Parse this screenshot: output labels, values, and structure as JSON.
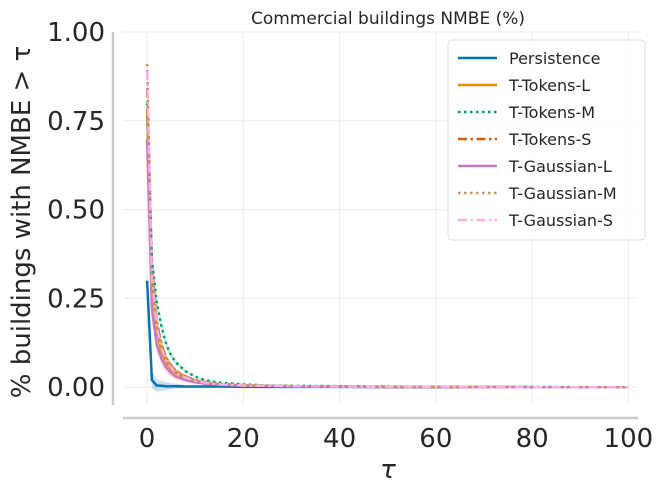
{
  "chart_data": {
    "type": "line",
    "title": "Commercial buildings NMBE (%)",
    "xlabel": "τ",
    "ylabel": "% buildings with NMBE  > τ",
    "xlim": [
      -5,
      102
    ],
    "ylim": [
      -0.05,
      1.0
    ],
    "xticks": [
      0,
      20,
      40,
      60,
      80,
      100
    ],
    "yticks": [
      0.0,
      0.25,
      0.5,
      0.75,
      1.0
    ],
    "xtick_labels": [
      "0",
      "20",
      "40",
      "60",
      "80",
      "100"
    ],
    "ytick_labels": [
      "0.00",
      "0.25",
      "0.50",
      "0.75",
      "1.00"
    ],
    "grid": true,
    "legend_position": "top-right",
    "x": [
      0,
      1,
      2,
      3,
      4,
      5,
      6,
      8,
      10,
      12,
      15,
      20,
      25,
      30,
      40,
      50,
      60,
      70,
      80,
      90,
      100
    ],
    "series": [
      {
        "name": "Persistence",
        "color": "#0173b2",
        "dash": "solid",
        "band": 0.03,
        "values": [
          0.3,
          0.02,
          0.005,
          0.004,
          0.003,
          0.003,
          0.003,
          0.002,
          0.002,
          0.002,
          0.002,
          0.001,
          0.001,
          0.001,
          0.001,
          0.0,
          0.0,
          0.0,
          0.0,
          0.0,
          0.0
        ]
      },
      {
        "name": "T-Tokens-L",
        "color": "#de8f05",
        "dash": "solid",
        "band": 0.03,
        "values": [
          0.78,
          0.3,
          0.16,
          0.1,
          0.07,
          0.05,
          0.04,
          0.025,
          0.017,
          0.012,
          0.008,
          0.005,
          0.004,
          0.003,
          0.002,
          0.001,
          0.001,
          0.001,
          0.0,
          0.0,
          0.0
        ]
      },
      {
        "name": "T-Tokens-M",
        "color": "#029e73",
        "dash": "dotted",
        "band": 0.03,
        "values": [
          0.8,
          0.36,
          0.24,
          0.17,
          0.12,
          0.09,
          0.07,
          0.045,
          0.03,
          0.02,
          0.013,
          0.008,
          0.005,
          0.004,
          0.003,
          0.002,
          0.001,
          0.001,
          0.001,
          0.0,
          0.0
        ]
      },
      {
        "name": "T-Tokens-S",
        "color": "#d55e00",
        "dash": "dashdot",
        "band": 0.03,
        "values": [
          0.84,
          0.33,
          0.18,
          0.12,
          0.08,
          0.06,
          0.045,
          0.03,
          0.02,
          0.014,
          0.009,
          0.006,
          0.004,
          0.003,
          0.002,
          0.001,
          0.001,
          0.001,
          0.0,
          0.0,
          0.0
        ]
      },
      {
        "name": "T-Gaussian-L",
        "color": "#cc78bc",
        "dash": "solid",
        "band": 0.04,
        "values": [
          0.7,
          0.22,
          0.12,
          0.08,
          0.055,
          0.04,
          0.03,
          0.02,
          0.014,
          0.01,
          0.007,
          0.005,
          0.004,
          0.003,
          0.002,
          0.001,
          0.001,
          0.0,
          0.0,
          0.0,
          0.0
        ]
      },
      {
        "name": "T-Gaussian-M",
        "color": "#ca9161",
        "dash": "dotted",
        "band": 0.03,
        "values": [
          0.91,
          0.34,
          0.19,
          0.12,
          0.08,
          0.06,
          0.045,
          0.03,
          0.02,
          0.014,
          0.009,
          0.006,
          0.004,
          0.003,
          0.002,
          0.001,
          0.001,
          0.001,
          0.0,
          0.0,
          0.0
        ]
      },
      {
        "name": "T-Gaussian-S",
        "color": "#fbafe4",
        "dash": "dashdot",
        "band": 0.04,
        "values": [
          0.89,
          0.31,
          0.17,
          0.11,
          0.075,
          0.055,
          0.04,
          0.027,
          0.018,
          0.013,
          0.008,
          0.005,
          0.004,
          0.003,
          0.002,
          0.001,
          0.001,
          0.001,
          0.0,
          0.0,
          0.0
        ]
      }
    ]
  }
}
